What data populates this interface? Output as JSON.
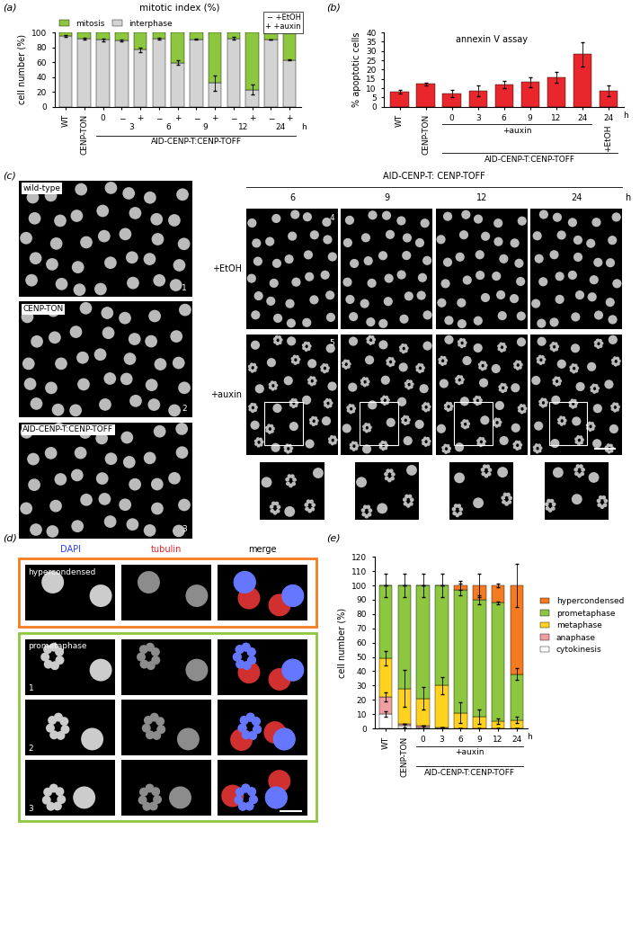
{
  "chart_data": [
    {
      "panel": "(a)",
      "type": "bar",
      "stacked": true,
      "title": "mitotic index (%)",
      "y_label": "cell number (%)",
      "categories": [
        "WT",
        "CENP-TON",
        "0",
        "−",
        "+",
        "−",
        "+",
        "−",
        "+",
        "−",
        "+",
        "−",
        "+"
      ],
      "time_labels": [
        "3",
        "6",
        "9",
        "12",
        "24"
      ],
      "unit": "h",
      "strain": [
        null,
        null,
        "AID-CENP-T:CENP-TOFF",
        "AID-CENP-T:CENP-TOFF",
        "AID-CENP-T:CENP-TOFF",
        "AID-CENP-T:CENP-TOFF",
        "AID-CENP-T:CENP-TOFF",
        "AID-CENP-T:CENP-TOFF",
        "AID-CENP-T:CENP-TOFF",
        "AID-CENP-T:CENP-TOFF",
        "AID-CENP-T:CENP-TOFF",
        "AID-CENP-T:CENP-TOFF",
        "AID-CENP-T:CENP-TOFF"
      ],
      "treatment_legend": [
        {
          "symbol": "−",
          "label": "+EtOH"
        },
        {
          "symbol": "+",
          "label": "+auxin"
        }
      ],
      "series": [
        {
          "name": "interphase",
          "color": "#d3d3d3",
          "values": [
            95,
            92,
            90,
            89,
            77,
            92,
            59,
            91,
            32,
            92,
            23,
            91,
            63
          ],
          "errors": [
            1,
            1,
            2,
            1,
            3,
            1,
            3,
            1,
            10,
            2,
            7,
            0,
            1
          ]
        },
        {
          "name": "mitosis",
          "color": "#8dc63f",
          "values": [
            5,
            8,
            10,
            11,
            23,
            8,
            41,
            9,
            68,
            8,
            77,
            9,
            37
          ]
        }
      ],
      "ylim": [
        0,
        100
      ],
      "yticks": [
        0,
        20,
        40,
        60,
        80,
        100
      ],
      "legend": "top"
    },
    {
      "panel": "(b)",
      "type": "bar",
      "title": "annexin V assay",
      "y_label": "% apoptotic cells",
      "categories": [
        "WT",
        "CENP-TON",
        "0",
        "3",
        "6",
        "9",
        "12",
        "24",
        "24"
      ],
      "values": [
        8,
        12.3,
        7.2,
        8.7,
        11.8,
        13.2,
        15.8,
        28.2,
        8.5
      ],
      "errors": [
        1,
        0.8,
        1.8,
        2.8,
        2,
        2.8,
        2.8,
        6.5,
        2.8
      ],
      "color": "#e8262c",
      "unit": "h",
      "treatment": [
        null,
        null,
        "+auxin",
        "+auxin",
        "+auxin",
        "+auxin",
        "+auxin",
        "+auxin",
        "+EtOH"
      ],
      "strain": [
        null,
        null,
        "AID-CENP-T:CENP-TOFF",
        "AID-CENP-T:CENP-TOFF",
        "AID-CENP-T:CENP-TOFF",
        "AID-CENP-T:CENP-TOFF",
        "AID-CENP-T:CENP-TOFF",
        "AID-CENP-T:CENP-TOFF",
        "AID-CENP-T:CENP-TOFF"
      ],
      "ylim": [
        0,
        40
      ],
      "yticks": [
        0,
        5,
        10,
        15,
        20,
        25,
        30,
        35,
        40
      ]
    },
    {
      "panel": "(e)",
      "type": "bar",
      "stacked": true,
      "y_label": "cell number (%)",
      "categories": [
        "WT",
        "CENP-TON",
        "0",
        "3",
        "6",
        "9",
        "12",
        "24"
      ],
      "unit": "h",
      "treatment": [
        null,
        null,
        "+auxin",
        "+auxin",
        "+auxin",
        "+auxin",
        "+auxin",
        "+auxin"
      ],
      "strain": [
        null,
        null,
        "AID-CENP-T:CENP-TOFF",
        "AID-CENP-T:CENP-TOFF",
        "AID-CENP-T:CENP-TOFF",
        "AID-CENP-T:CENP-TOFF",
        "AID-CENP-T:CENP-TOFF",
        "AID-CENP-T:CENP-TOFF"
      ],
      "series": [
        {
          "name": "cytokinesis",
          "color": "#ffffff",
          "values": [
            10,
            2,
            1,
            1,
            0,
            0,
            0,
            0
          ],
          "errors": [
            2,
            1,
            1,
            0,
            0,
            0,
            0,
            0
          ]
        },
        {
          "name": "anaphase",
          "color": "#f0a0a0",
          "values": [
            12,
            1,
            1,
            0,
            0,
            0,
            0,
            0
          ],
          "errors": [
            3,
            0,
            0,
            0,
            0,
            0,
            0,
            0
          ]
        },
        {
          "name": "metaphase",
          "color": "#ffd21f",
          "values": [
            27,
            25,
            19,
            29,
            11,
            8,
            5,
            6
          ],
          "errors": [
            5,
            13,
            8,
            6,
            7,
            5,
            2,
            2
          ]
        },
        {
          "name": "prometaphase",
          "color": "#8dc63f",
          "values": [
            51,
            72,
            79,
            70,
            86,
            82,
            83,
            32
          ],
          "errors": [
            8,
            8,
            8,
            8,
            4,
            3,
            1,
            4
          ]
        },
        {
          "name": "hypercondensed",
          "color": "#f47b20",
          "values": [
            0,
            0,
            0,
            0,
            3,
            10,
            12,
            62
          ],
          "errors": [
            0,
            0,
            0,
            0,
            3,
            8,
            1,
            15
          ]
        }
      ],
      "ylim": [
        0,
        120
      ],
      "yticks": [
        0,
        10,
        20,
        30,
        40,
        50,
        60,
        70,
        80,
        90,
        100,
        110,
        120
      ],
      "legend": "right"
    }
  ],
  "images": {
    "c": {
      "panel": "(c)",
      "samples": [
        {
          "label": "wild-type",
          "number": "1"
        },
        {
          "label": "CENP-TON",
          "number": "2"
        },
        {
          "label": "AID-CENP-T:CENP-TOFF",
          "number": "3"
        }
      ],
      "header": "AID-CENP-T: CENP-TOFF",
      "columns": [
        "6",
        "9",
        "12",
        "24"
      ],
      "unit": "h",
      "rows": [
        {
          "label": "+EtOH",
          "number": "4"
        },
        {
          "label": "+auxin",
          "number": "5"
        }
      ]
    },
    "d": {
      "panel": "(d)",
      "channels": [
        {
          "name": "DAPI",
          "color": "#2a3cff"
        },
        {
          "name": "tubulin",
          "color": "#e8262c"
        },
        {
          "name": "merge",
          "color": "#000000"
        }
      ],
      "groups": [
        {
          "label": "hypercondensed",
          "color": "#f47b20",
          "rows": [
            null
          ]
        },
        {
          "label": "prometaphase",
          "color": "#8dc63f",
          "rows": [
            "1",
            "2",
            "3"
          ]
        }
      ]
    }
  }
}
